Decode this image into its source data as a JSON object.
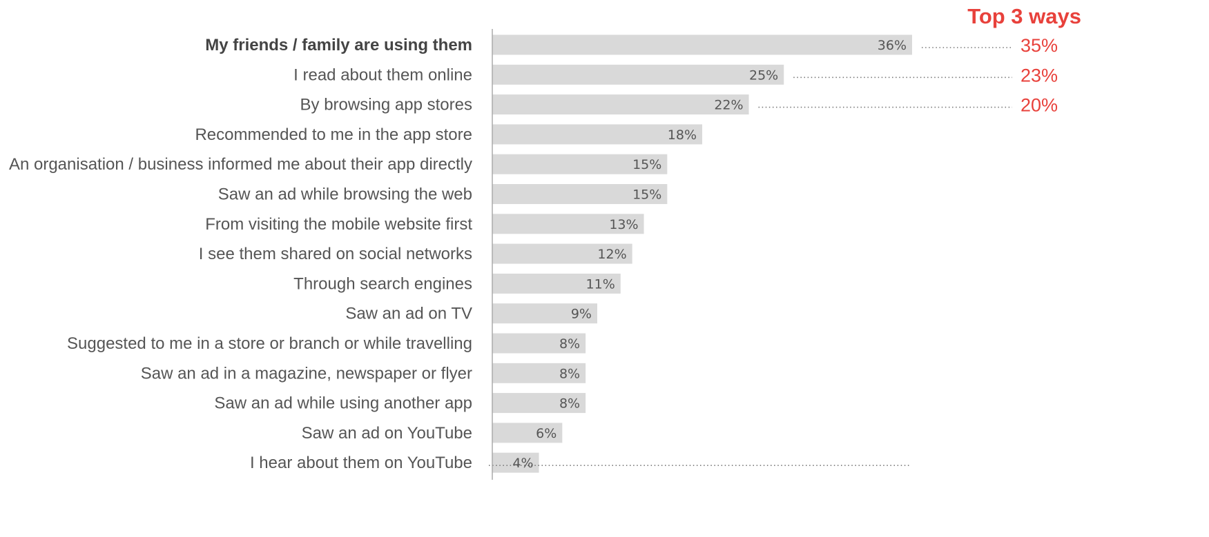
{
  "chart_data": {
    "type": "bar",
    "orientation": "horizontal",
    "title": "",
    "xlabel": "",
    "ylabel": "",
    "xlim": [
      0,
      40
    ],
    "grid": false,
    "categories": [
      "My friends / family are using them",
      "I read about them online",
      "By browsing app stores",
      "Recommended to me in the app store",
      "An organisation / business informed me about their app directly",
      "Saw an ad while browsing the web",
      "From visiting the mobile website first",
      "I see them shared on social networks",
      "Through search engines",
      "Saw an ad on TV",
      "Suggested to me in a store or branch or while travelling",
      "Saw an ad in a magazine, newspaper or flyer",
      "Saw an ad while using another app",
      "Saw an ad on YouTube",
      "I hear about them on YouTube"
    ],
    "values": [
      36,
      25,
      22,
      18,
      15,
      15,
      13,
      12,
      11,
      9,
      8,
      8,
      8,
      6,
      4
    ],
    "value_labels": [
      "36%",
      "25%",
      "22%",
      "18%",
      "15%",
      "15%",
      "13%",
      "12%",
      "11%",
      "9%",
      "8%",
      "8%",
      "8%",
      "6%",
      "4%"
    ],
    "bold_category_index": 0,
    "top3": {
      "title": "Top 3 ways",
      "values": [
        "35%",
        "23%",
        "20%"
      ]
    },
    "colors": {
      "bar": "#d9d9d9",
      "axis": "#aaaaaa",
      "dots": "#777777",
      "highlight": "#e8413b"
    }
  }
}
